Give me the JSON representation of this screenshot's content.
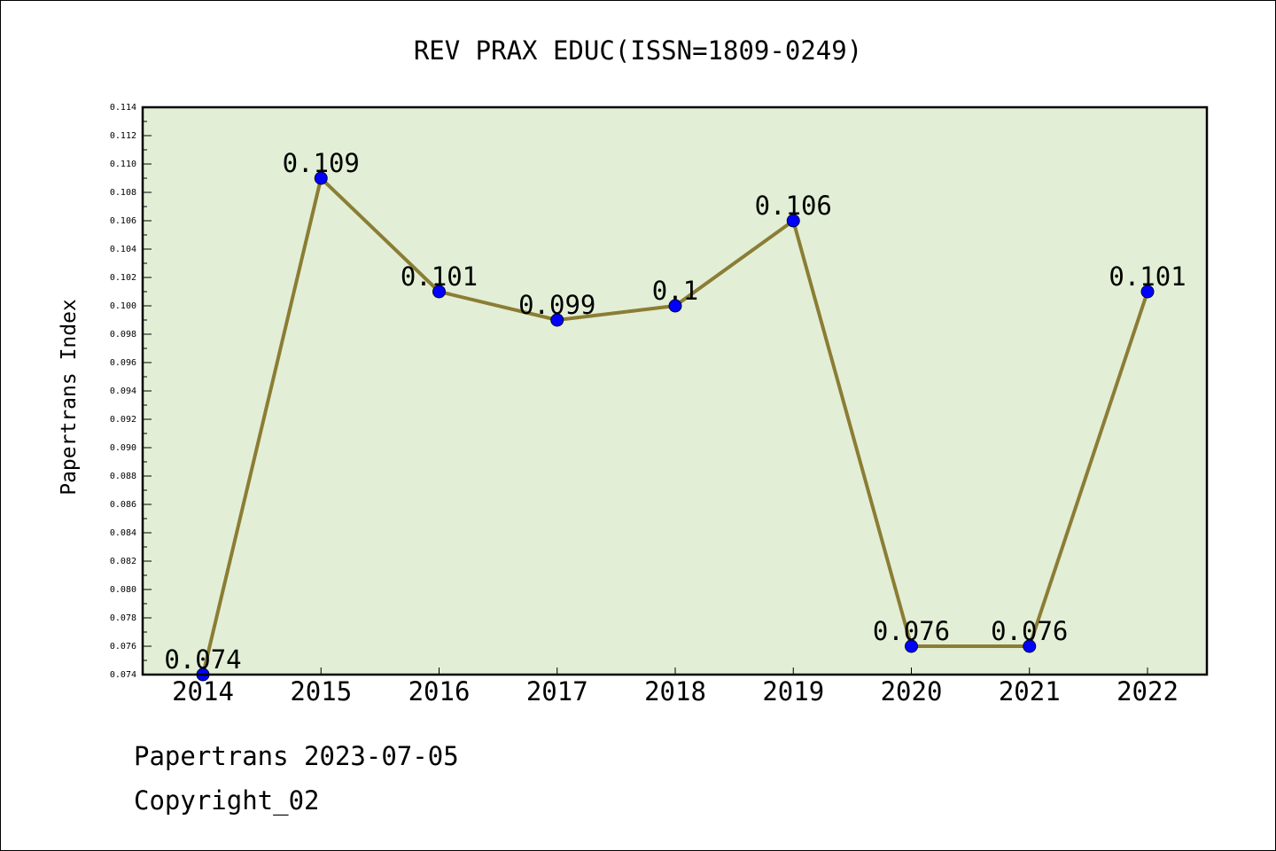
{
  "chart_data": {
    "type": "line",
    "title": "REV PRAX EDUC(ISSN=1809-0249)",
    "xlabel": "",
    "ylabel": "Papertrans Index",
    "categories": [
      "2014",
      "2015",
      "2016",
      "2017",
      "2018",
      "2019",
      "2020",
      "2021",
      "2022"
    ],
    "values": [
      0.074,
      0.109,
      0.101,
      0.099,
      0.1,
      0.106,
      0.076,
      0.076,
      0.101
    ],
    "point_labels": [
      "0.074",
      "0.109",
      "0.101",
      "0.099",
      "0.1",
      "0.106",
      "0.076",
      "0.076",
      "0.101"
    ],
    "ylim": [
      0.074,
      0.114
    ],
    "ytick_step": 0.002,
    "yticks": [
      "0.074",
      "0.076",
      "0.078",
      "0.080",
      "0.082",
      "0.084",
      "0.086",
      "0.088",
      "0.090",
      "0.092",
      "0.094",
      "0.096",
      "0.098",
      "0.100",
      "0.102",
      "0.104",
      "0.106",
      "0.108",
      "0.110",
      "0.112",
      "0.114"
    ],
    "grid": false,
    "legend": "none",
    "colors": {
      "plot_background": "#e2efd6",
      "line": "#8b7d34",
      "marker": "#0000ff"
    }
  },
  "footer": {
    "line1": "Papertrans 2023-07-05",
    "line2": "Copyright_02"
  }
}
